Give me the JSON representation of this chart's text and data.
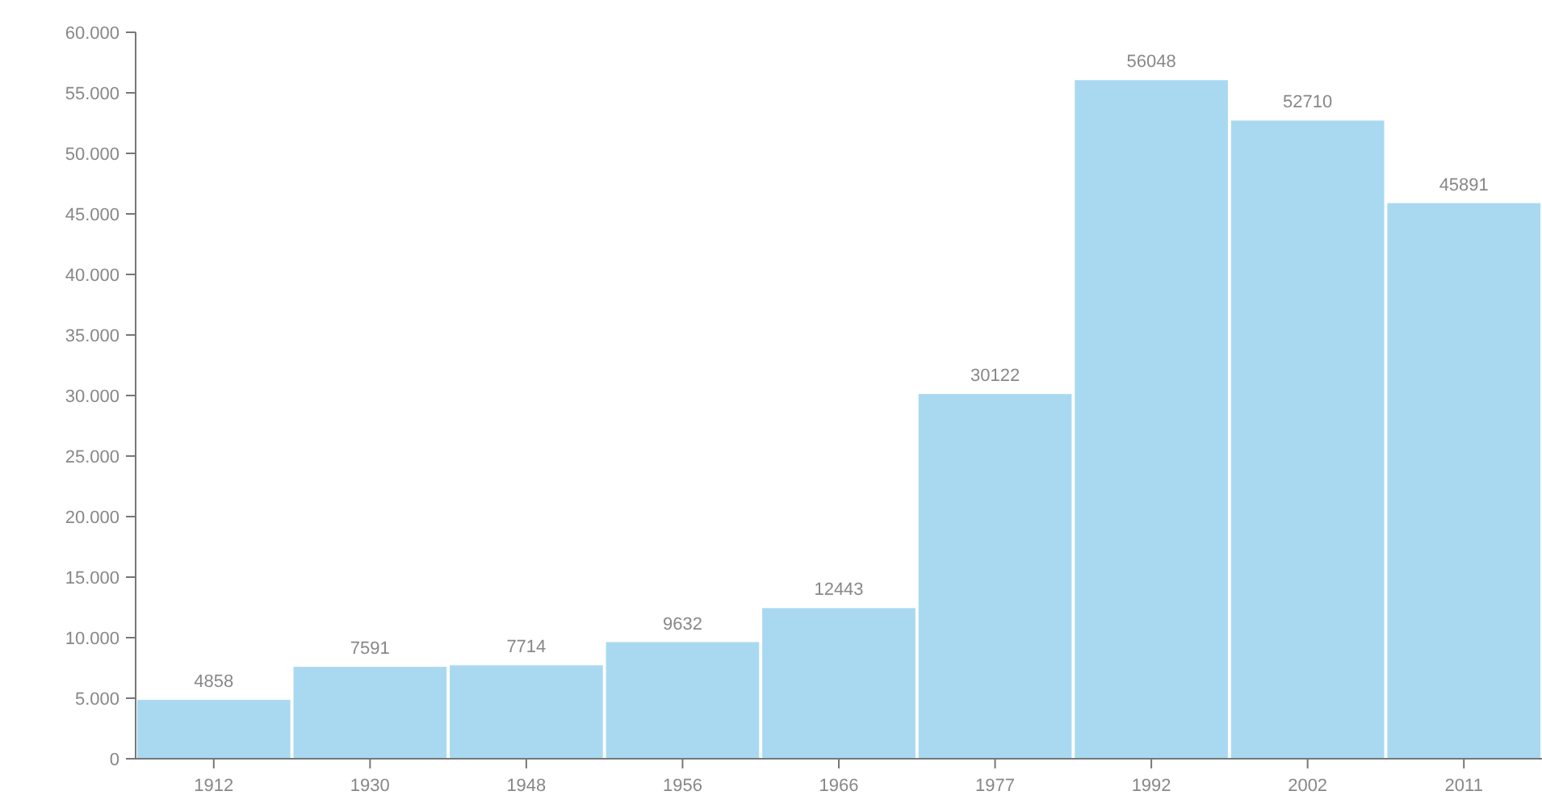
{
  "chart_data": {
    "type": "bar",
    "categories": [
      "1912",
      "1930",
      "1948",
      "1956",
      "1966",
      "1977",
      "1992",
      "2002",
      "2011"
    ],
    "values": [
      4858,
      7591,
      7714,
      9632,
      12443,
      30122,
      56048,
      52710,
      45891
    ],
    "color": "#a9d9f0",
    "data_labels": true,
    "ylim": [
      0,
      60000
    ],
    "yticks": [
      {
        "value": 0,
        "label": "0"
      },
      {
        "value": 5000,
        "label": "5.000"
      },
      {
        "value": 10000,
        "label": "10.000"
      },
      {
        "value": 15000,
        "label": "15.000"
      },
      {
        "value": 20000,
        "label": "20.000"
      },
      {
        "value": 25000,
        "label": "25.000"
      },
      {
        "value": 30000,
        "label": "30.000"
      },
      {
        "value": 35000,
        "label": "35.000"
      },
      {
        "value": 40000,
        "label": "40.000"
      },
      {
        "value": 45000,
        "label": "45.000"
      },
      {
        "value": 50000,
        "label": "50.000"
      },
      {
        "value": 55000,
        "label": "55.000"
      },
      {
        "value": 60000,
        "label": "60.000"
      }
    ]
  }
}
